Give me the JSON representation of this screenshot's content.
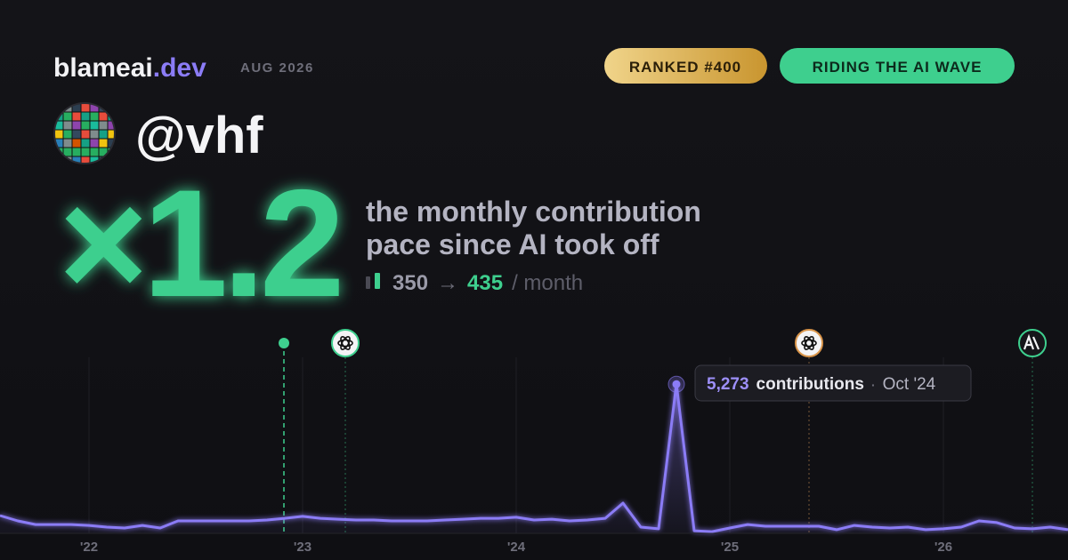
{
  "brand": {
    "name": "blameai",
    "tld": ".dev",
    "date": "AUG 2026"
  },
  "badges": {
    "rank": "RANKED #400",
    "status": "RIDING THE AI WAVE"
  },
  "handle": "@vhf",
  "headline": {
    "multiplier": "×1.2",
    "line1": "the monthly contribution",
    "line2": "pace since AI took off",
    "before": 350,
    "arrow": "→",
    "after": 435,
    "unit": "/ month"
  },
  "chart_data": {
    "type": "line",
    "categories": [
      null,
      null,
      null,
      null,
      null,
      "'22",
      null,
      null,
      null,
      null,
      null,
      null,
      null,
      null,
      null,
      null,
      null,
      "'23",
      null,
      null,
      null,
      null,
      null,
      null,
      null,
      null,
      null,
      null,
      null,
      "'24",
      null,
      null,
      null,
      null,
      null,
      null,
      null,
      null,
      null,
      null,
      null,
      "'25",
      null,
      null,
      null,
      null,
      null,
      null,
      null,
      null,
      null,
      null,
      null,
      "'26",
      null,
      null,
      null,
      null,
      null,
      null,
      null
    ],
    "series": [
      {
        "name": "contributions",
        "color": "#8b7cf6",
        "values": [
          630,
          440,
          310,
          310,
          310,
          280,
          220,
          190,
          280,
          190,
          440,
          440,
          440,
          440,
          440,
          470,
          530,
          600,
          530,
          500,
          470,
          470,
          440,
          440,
          440,
          470,
          500,
          530,
          530,
          570,
          470,
          500,
          440,
          470,
          530,
          1070,
          220,
          160,
          5273,
          90,
          60,
          190,
          310,
          250,
          250,
          250,
          250,
          130,
          280,
          220,
          190,
          220,
          130,
          160,
          220,
          440,
          380,
          190,
          160,
          220,
          130
        ]
      }
    ],
    "ylim": [
      0,
      5500
    ],
    "tooltip": {
      "label": "5,273",
      "unit": "contributions",
      "separator": "·",
      "date": "Oct '24"
    }
  }
}
